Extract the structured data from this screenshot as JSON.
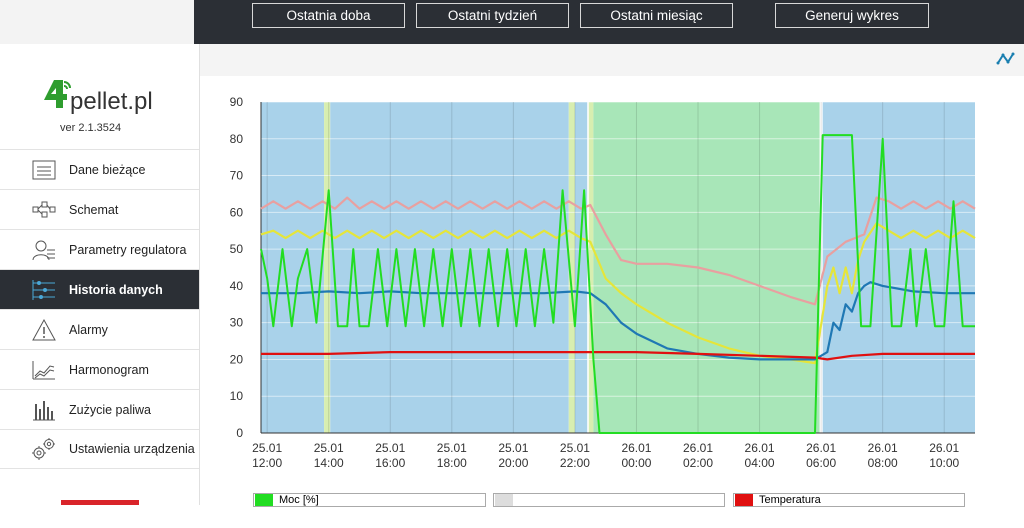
{
  "toolbar": {
    "buttons": [
      "Ostatnia doba",
      "Ostatni tydzień",
      "Ostatni miesiąc",
      "Generuj wykres"
    ]
  },
  "logo": {
    "brand_digit": "4",
    "brand_text": "pellet.pl",
    "version": "ver 2.1.3524"
  },
  "menu": {
    "items": [
      {
        "label": "Dane bieżące",
        "icon": "monitor-icon"
      },
      {
        "label": "Schemat",
        "icon": "schema-icon"
      },
      {
        "label": "Parametry regulatora",
        "icon": "user-settings-icon"
      },
      {
        "label": "Historia danych",
        "icon": "history-icon",
        "active": true
      },
      {
        "label": "Alarmy",
        "icon": "warning-icon"
      },
      {
        "label": "Harmonogram",
        "icon": "schedule-chart-icon"
      },
      {
        "label": "Zużycie paliwa",
        "icon": "bar-chart-icon"
      },
      {
        "label": "Ustawienia urządzenia",
        "icon": "gears-icon"
      }
    ]
  },
  "colors": {
    "dark": "#2b2f35",
    "active": "#2b2f35",
    "accent_red": "#d9242a",
    "logo_green": "#2e9d2e"
  },
  "legend": [
    {
      "label": "Moc [%]",
      "color": "#22dd22"
    },
    {
      "label": "",
      "color": "#dddddd"
    },
    {
      "label": "Temperatura",
      "color": "#e01010"
    }
  ],
  "chart_data": {
    "type": "line",
    "ylim": [
      0,
      90
    ],
    "yticks": [
      0,
      10,
      20,
      30,
      40,
      50,
      60,
      70,
      80,
      90
    ],
    "xlim": [
      11.8,
      35.0
    ],
    "xticks": [
      {
        "x": 12,
        "label": [
          "25.01",
          "12:00"
        ]
      },
      {
        "x": 14,
        "label": [
          "25.01",
          "14:00"
        ]
      },
      {
        "x": 16,
        "label": [
          "25.01",
          "16:00"
        ]
      },
      {
        "x": 18,
        "label": [
          "25.01",
          "18:00"
        ]
      },
      {
        "x": 20,
        "label": [
          "25.01",
          "20:00"
        ]
      },
      {
        "x": 22,
        "label": [
          "25.01",
          "22:00"
        ]
      },
      {
        "x": 24,
        "label": [
          "26.01",
          "00:00"
        ]
      },
      {
        "x": 26,
        "label": [
          "26.01",
          "02:00"
        ]
      },
      {
        "x": 28,
        "label": [
          "26.01",
          "04:00"
        ]
      },
      {
        "x": 30,
        "label": [
          "26.01",
          "06:00"
        ]
      },
      {
        "x": 32,
        "label": [
          "26.01",
          "08:00"
        ]
      },
      {
        "x": 34,
        "label": [
          "26.01",
          "10:00"
        ]
      }
    ],
    "bands": [
      {
        "from": 11.8,
        "to": 13.85,
        "color": "#a9d2ea"
      },
      {
        "from": 13.85,
        "to": 14.05,
        "color": "#d8eeb0"
      },
      {
        "from": 14.05,
        "to": 21.8,
        "color": "#a9d2ea"
      },
      {
        "from": 21.8,
        "to": 22.0,
        "color": "#d8eeb0"
      },
      {
        "from": 22.0,
        "to": 22.4,
        "color": "#a9d2ea"
      },
      {
        "from": 22.45,
        "to": 22.6,
        "color": "#d8eeb0"
      },
      {
        "from": 22.6,
        "to": 29.95,
        "color": "#a8e6b8"
      },
      {
        "from": 30.05,
        "to": 35.0,
        "color": "#a9d2ea"
      }
    ],
    "series": [
      {
        "name": "",
        "color": "#e8a0a0",
        "values": [
          [
            11.8,
            61
          ],
          [
            12.2,
            63
          ],
          [
            12.6,
            61
          ],
          [
            13.0,
            63
          ],
          [
            13.4,
            61
          ],
          [
            13.8,
            63
          ],
          [
            14.2,
            61
          ],
          [
            14.6,
            64
          ],
          [
            15.0,
            61
          ],
          [
            15.4,
            63
          ],
          [
            15.8,
            61
          ],
          [
            16.2,
            63
          ],
          [
            16.6,
            61
          ],
          [
            17.0,
            63
          ],
          [
            17.4,
            61
          ],
          [
            17.8,
            63
          ],
          [
            18.2,
            61
          ],
          [
            18.6,
            63
          ],
          [
            19.0,
            61
          ],
          [
            19.4,
            63
          ],
          [
            19.8,
            61
          ],
          [
            20.2,
            63
          ],
          [
            20.6,
            61
          ],
          [
            21.0,
            63
          ],
          [
            21.4,
            61
          ],
          [
            21.8,
            63
          ],
          [
            22.2,
            61
          ],
          [
            22.5,
            62
          ],
          [
            23.0,
            54
          ],
          [
            23.5,
            47
          ],
          [
            24.0,
            46
          ],
          [
            25.0,
            46
          ],
          [
            26.0,
            45
          ],
          [
            27.0,
            43
          ],
          [
            28.0,
            40
          ],
          [
            29.0,
            37
          ],
          [
            29.8,
            35
          ],
          [
            30.2,
            48
          ],
          [
            30.8,
            52
          ],
          [
            31.4,
            54
          ],
          [
            31.8,
            64
          ],
          [
            32.2,
            63
          ],
          [
            32.6,
            61
          ],
          [
            33.0,
            63
          ],
          [
            33.4,
            61
          ],
          [
            33.8,
            63
          ],
          [
            34.2,
            61
          ],
          [
            34.6,
            63
          ],
          [
            35.0,
            61
          ]
        ]
      },
      {
        "name": "",
        "color": "#e5e53a",
        "values": [
          [
            11.8,
            54
          ],
          [
            12.2,
            55
          ],
          [
            12.6,
            53
          ],
          [
            13.0,
            55
          ],
          [
            13.4,
            53
          ],
          [
            13.8,
            55
          ],
          [
            14.2,
            53
          ],
          [
            14.6,
            55
          ],
          [
            15.0,
            53
          ],
          [
            15.4,
            55
          ],
          [
            15.8,
            53
          ],
          [
            16.2,
            55
          ],
          [
            16.6,
            53
          ],
          [
            17.0,
            55
          ],
          [
            17.4,
            53
          ],
          [
            17.8,
            55
          ],
          [
            18.2,
            53
          ],
          [
            18.6,
            55
          ],
          [
            19.0,
            53
          ],
          [
            19.4,
            55
          ],
          [
            19.8,
            53
          ],
          [
            20.2,
            55
          ],
          [
            20.6,
            53
          ],
          [
            21.0,
            55
          ],
          [
            21.4,
            53
          ],
          [
            21.8,
            55
          ],
          [
            22.2,
            53
          ],
          [
            22.5,
            52
          ],
          [
            23.0,
            42
          ],
          [
            23.5,
            38
          ],
          [
            24.0,
            35
          ],
          [
            25.0,
            30
          ],
          [
            26.0,
            26
          ],
          [
            27.0,
            23
          ],
          [
            28.0,
            21
          ],
          [
            29.0,
            20
          ],
          [
            29.8,
            19
          ],
          [
            30.2,
            40
          ],
          [
            30.4,
            45
          ],
          [
            30.6,
            38
          ],
          [
            30.8,
            45
          ],
          [
            31.0,
            38
          ],
          [
            31.2,
            47
          ],
          [
            31.4,
            52
          ],
          [
            31.8,
            57
          ],
          [
            32.2,
            55
          ],
          [
            32.6,
            53
          ],
          [
            33.0,
            55
          ],
          [
            33.4,
            53
          ],
          [
            33.8,
            55
          ],
          [
            34.2,
            53
          ],
          [
            34.6,
            55
          ],
          [
            35.0,
            53
          ]
        ]
      },
      {
        "name": "",
        "color": "#1f78b4",
        "values": [
          [
            11.8,
            38
          ],
          [
            13.0,
            38
          ],
          [
            14.0,
            38.5
          ],
          [
            15.0,
            38
          ],
          [
            16.0,
            38.5
          ],
          [
            17.0,
            38
          ],
          [
            18.0,
            38
          ],
          [
            19.0,
            38
          ],
          [
            20.0,
            38
          ],
          [
            21.0,
            38
          ],
          [
            22.0,
            38.5
          ],
          [
            22.5,
            38
          ],
          [
            23.0,
            35
          ],
          [
            23.5,
            30
          ],
          [
            24.0,
            27
          ],
          [
            25.0,
            23
          ],
          [
            26.0,
            21.5
          ],
          [
            27.0,
            20.5
          ],
          [
            28.0,
            20
          ],
          [
            29.0,
            20
          ],
          [
            29.8,
            20
          ],
          [
            30.2,
            22
          ],
          [
            30.4,
            30
          ],
          [
            30.6,
            28
          ],
          [
            30.8,
            35
          ],
          [
            31.0,
            33
          ],
          [
            31.2,
            38
          ],
          [
            31.4,
            40
          ],
          [
            31.6,
            41
          ],
          [
            32.0,
            40
          ],
          [
            33.0,
            38.5
          ],
          [
            34.0,
            38
          ],
          [
            35.0,
            38
          ]
        ]
      },
      {
        "name": "Temperatura",
        "color": "#e01010",
        "values": [
          [
            11.8,
            21.5
          ],
          [
            14.0,
            21.5
          ],
          [
            16.0,
            22
          ],
          [
            18.0,
            22
          ],
          [
            20.0,
            22
          ],
          [
            22.0,
            22
          ],
          [
            24.0,
            22
          ],
          [
            26.0,
            21.5
          ],
          [
            28.0,
            21
          ],
          [
            29.8,
            20.5
          ],
          [
            30.2,
            20
          ],
          [
            31.0,
            21
          ],
          [
            32.0,
            21.5
          ],
          [
            33.0,
            21.5
          ],
          [
            35.0,
            21.5
          ]
        ]
      },
      {
        "name": "Moc [%]",
        "color": "#22dd22",
        "values": [
          [
            11.8,
            50
          ],
          [
            12.0,
            42
          ],
          [
            12.2,
            29
          ],
          [
            12.5,
            50
          ],
          [
            12.8,
            29
          ],
          [
            13.0,
            42
          ],
          [
            13.3,
            50
          ],
          [
            13.6,
            30
          ],
          [
            14.0,
            66
          ],
          [
            14.3,
            29
          ],
          [
            14.6,
            29
          ],
          [
            14.8,
            50
          ],
          [
            15.0,
            29
          ],
          [
            15.3,
            29
          ],
          [
            15.6,
            50
          ],
          [
            15.9,
            29
          ],
          [
            16.2,
            50
          ],
          [
            16.5,
            29
          ],
          [
            16.8,
            50
          ],
          [
            17.1,
            29
          ],
          [
            17.4,
            50
          ],
          [
            17.7,
            29
          ],
          [
            18.0,
            50
          ],
          [
            18.3,
            29
          ],
          [
            18.6,
            50
          ],
          [
            18.9,
            29
          ],
          [
            19.2,
            50
          ],
          [
            19.5,
            29
          ],
          [
            19.8,
            50
          ],
          [
            20.1,
            29
          ],
          [
            20.4,
            50
          ],
          [
            20.7,
            29
          ],
          [
            21.0,
            50
          ],
          [
            21.3,
            30
          ],
          [
            21.6,
            66
          ],
          [
            22.0,
            29
          ],
          [
            22.3,
            66
          ],
          [
            22.6,
            20
          ],
          [
            22.8,
            0
          ],
          [
            29.8,
            0
          ],
          [
            30.05,
            81
          ],
          [
            30.6,
            81
          ],
          [
            31.0,
            81
          ],
          [
            31.3,
            29
          ],
          [
            31.6,
            29
          ],
          [
            32.0,
            80
          ],
          [
            32.3,
            29
          ],
          [
            32.6,
            29
          ],
          [
            32.9,
            50
          ],
          [
            33.1,
            29
          ],
          [
            33.4,
            50
          ],
          [
            33.7,
            29
          ],
          [
            34.0,
            29
          ],
          [
            34.3,
            63
          ],
          [
            34.6,
            29
          ],
          [
            35.0,
            29
          ]
        ]
      }
    ]
  }
}
